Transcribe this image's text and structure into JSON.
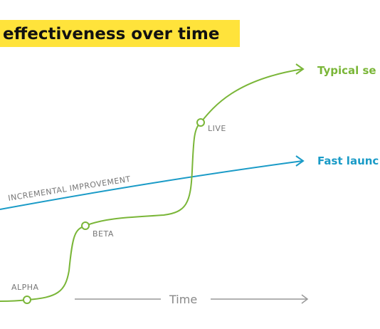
{
  "title": "effectiveness over time",
  "curves": {
    "typical": "Typical se",
    "fast": "Fast launc",
    "incremental": "INCREMENTAL IMPROVEMENT"
  },
  "milestones": [
    "ALPHA",
    "BETA",
    "LIVE"
  ],
  "axis_label": "Time"
}
